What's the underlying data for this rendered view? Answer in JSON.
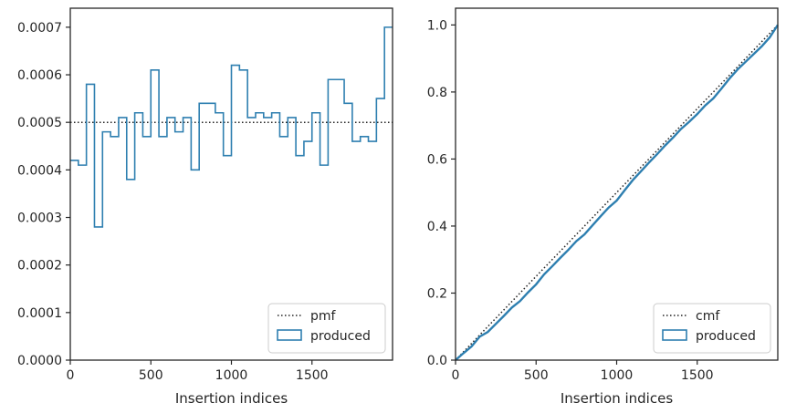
{
  "colors": {
    "series": "#2e7fb0",
    "reference": "#222222",
    "axes": "#262626",
    "legend_border": "#cccccc"
  },
  "chart_data": [
    {
      "type": "step",
      "xlabel": "Insertion indices",
      "ylabel": "",
      "xlim": [
        0,
        2000
      ],
      "ylim": [
        0,
        0.00074
      ],
      "xticks": [
        0,
        500,
        1000,
        1500
      ],
      "xtick_labels": [
        "0",
        "500",
        "1000",
        "1500"
      ],
      "yticks": [
        0,
        0.0001,
        0.0002,
        0.0003,
        0.0004,
        0.0005,
        0.0006,
        0.0007
      ],
      "ytick_labels": [
        "0.0000",
        "0.0001",
        "0.0002",
        "0.0003",
        "0.0004",
        "0.0005",
        "0.0006",
        "0.0007"
      ],
      "legend_position": "lower right",
      "grid": false,
      "series": [
        {
          "name": "pmf",
          "style": "dotted",
          "x": [
            0,
            2000
          ],
          "y": [
            0.0005,
            0.0005
          ]
        },
        {
          "name": "produced",
          "style": "step",
          "bin_width": 50,
          "bin_starts": [
            0,
            50,
            100,
            150,
            200,
            250,
            300,
            350,
            400,
            450,
            500,
            550,
            600,
            650,
            700,
            750,
            800,
            850,
            900,
            950,
            1000,
            1050,
            1100,
            1150,
            1200,
            1250,
            1300,
            1350,
            1400,
            1450,
            1500,
            1550,
            1600,
            1650,
            1700,
            1750,
            1800,
            1850,
            1900,
            1950
          ],
          "values": [
            0.00042,
            0.00041,
            0.00058,
            0.00028,
            0.00048,
            0.00047,
            0.00051,
            0.00038,
            0.00052,
            0.00047,
            0.00061,
            0.00047,
            0.00051,
            0.00048,
            0.00051,
            0.0004,
            0.00054,
            0.00054,
            0.00052,
            0.00043,
            0.00062,
            0.00061,
            0.00051,
            0.00052,
            0.00051,
            0.00052,
            0.00047,
            0.00051,
            0.00043,
            0.00046,
            0.00052,
            0.00041,
            0.00059,
            0.00059,
            0.00054,
            0.00046,
            0.00047,
            0.00046,
            0.00055,
            0.0007
          ]
        }
      ]
    },
    {
      "type": "line",
      "xlabel": "Insertion indices",
      "ylabel": "",
      "xlim": [
        0,
        2000
      ],
      "ylim": [
        0,
        1.05
      ],
      "xticks": [
        0,
        500,
        1000,
        1500
      ],
      "xtick_labels": [
        "0",
        "500",
        "1000",
        "1500"
      ],
      "yticks": [
        0,
        0.2,
        0.4,
        0.6,
        0.8,
        1.0
      ],
      "ytick_labels": [
        "0.0",
        "0.2",
        "0.4",
        "0.6",
        "0.8",
        "1.0"
      ],
      "legend_position": "lower right",
      "grid": false,
      "series": [
        {
          "name": "cmf",
          "style": "dotted",
          "x": [
            0,
            2000
          ],
          "y": [
            0,
            1.0
          ]
        },
        {
          "name": "produced",
          "style": "solid",
          "x": [
            0,
            50,
            100,
            150,
            200,
            250,
            300,
            350,
            400,
            450,
            500,
            550,
            600,
            650,
            700,
            750,
            800,
            850,
            900,
            950,
            1000,
            1050,
            1100,
            1150,
            1200,
            1250,
            1300,
            1350,
            1400,
            1450,
            1500,
            1550,
            1600,
            1650,
            1700,
            1750,
            1800,
            1850,
            1900,
            1950,
            2000
          ],
          "y": [
            0,
            0.021,
            0.041,
            0.07,
            0.084,
            0.108,
            0.132,
            0.157,
            0.176,
            0.202,
            0.226,
            0.256,
            0.28,
            0.305,
            0.329,
            0.355,
            0.375,
            0.402,
            0.429,
            0.455,
            0.476,
            0.507,
            0.537,
            0.563,
            0.589,
            0.614,
            0.64,
            0.664,
            0.69,
            0.711,
            0.734,
            0.76,
            0.781,
            0.81,
            0.84,
            0.867,
            0.89,
            0.913,
            0.936,
            0.963,
            1.0
          ]
        }
      ]
    }
  ]
}
